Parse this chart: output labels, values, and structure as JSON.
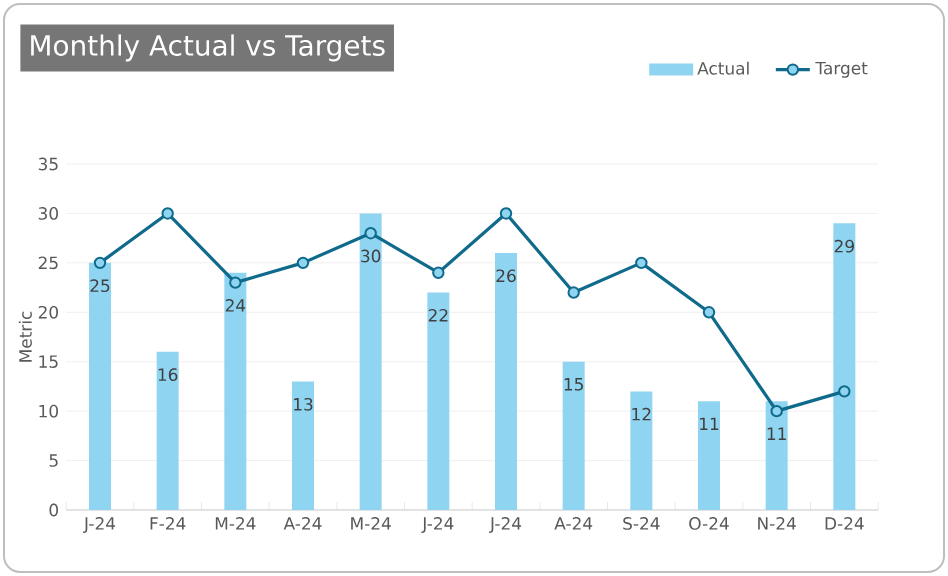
{
  "chart_data": {
    "type": "bar",
    "title": "Monthly Actual vs Targets",
    "ylabel": "Metric",
    "categories": [
      "J-24",
      "F-24",
      "M-24",
      "A-24",
      "M-24",
      "J-24",
      "J-24",
      "A-24",
      "S-24",
      "O-24",
      "N-24",
      "D-24"
    ],
    "series": [
      {
        "name": "Actual",
        "color": "#8fd5f2",
        "values": [
          25,
          16,
          24,
          13,
          30,
          22,
          26,
          15,
          12,
          11,
          11,
          29
        ],
        "value_labels": [
          "25",
          "16",
          "24",
          "13",
          "30",
          "22",
          "26",
          "15",
          "12",
          "11",
          "11",
          "29"
        ]
      },
      {
        "name": "Target",
        "type": "line",
        "color": "#0f6a8b",
        "marker": "circle",
        "values": [
          25,
          30,
          23,
          25,
          28,
          24,
          30,
          22,
          25,
          20,
          10,
          12
        ]
      }
    ],
    "ylim": [
      0,
      35
    ],
    "yticks": [
      0,
      5,
      10,
      15,
      20,
      25,
      30,
      35
    ],
    "grid": "y",
    "legend": "top right"
  }
}
